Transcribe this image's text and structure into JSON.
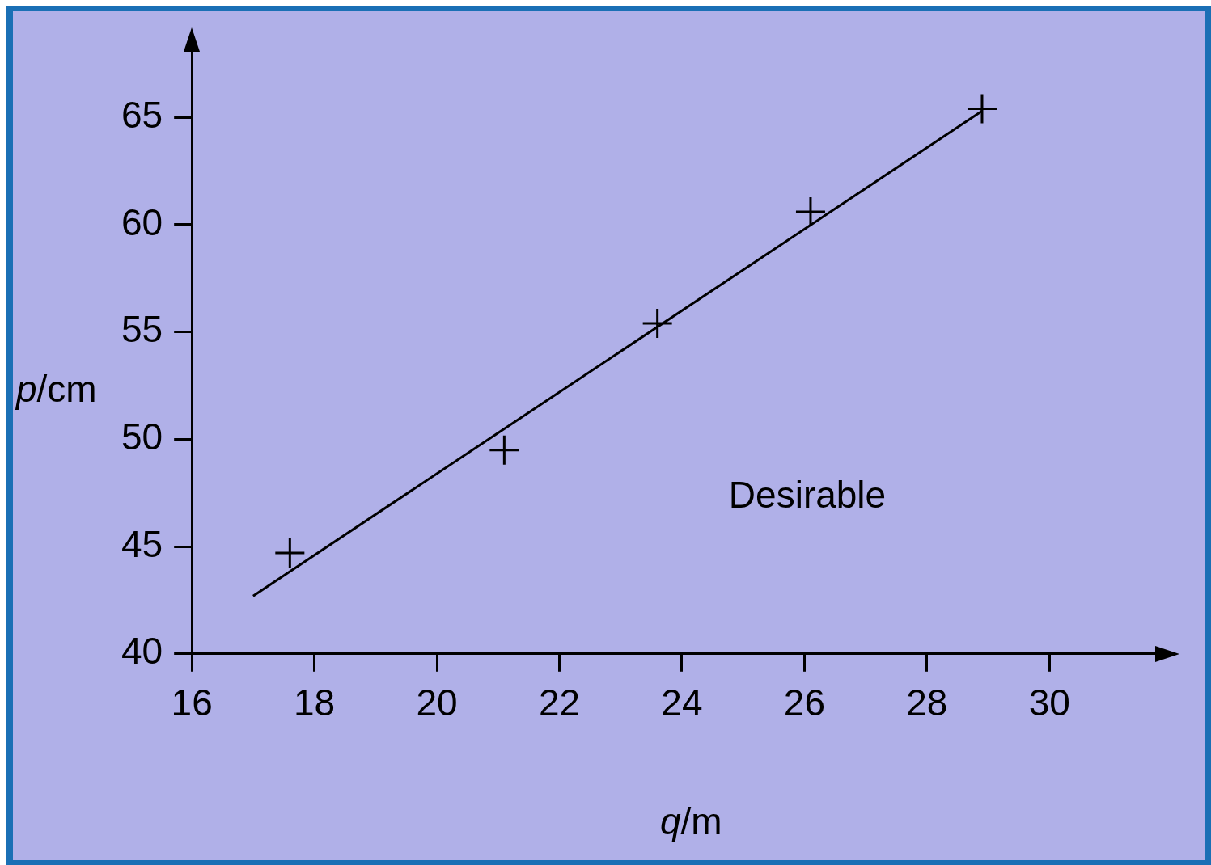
{
  "chart_data": {
    "type": "scatter",
    "xlabel": "q/m",
    "ylabel": "p/cm",
    "annotations": [
      "Desirable"
    ],
    "x": [
      17.6,
      21.1,
      23.6,
      26.1,
      28.9
    ],
    "series": [
      {
        "type": "scatter",
        "color": "#000000",
        "marker": "cross",
        "values": [
          44.7,
          49.5,
          55.4,
          60.6,
          65.4
        ]
      },
      {
        "type": "line",
        "color": "#000000",
        "x": [
          17.0,
          28.9
        ],
        "values": [
          42.7,
          65.3
        ],
        "marker": "none",
        "line_style": "solid"
      }
    ],
    "xlim": [
      16,
      31.7
    ],
    "ylim": [
      40,
      68
    ],
    "xticks": [
      16,
      18,
      20,
      22,
      24,
      26,
      28,
      30
    ],
    "yticks": [
      40,
      45,
      50,
      55,
      60,
      65
    ],
    "grid": false,
    "legend": false
  }
}
